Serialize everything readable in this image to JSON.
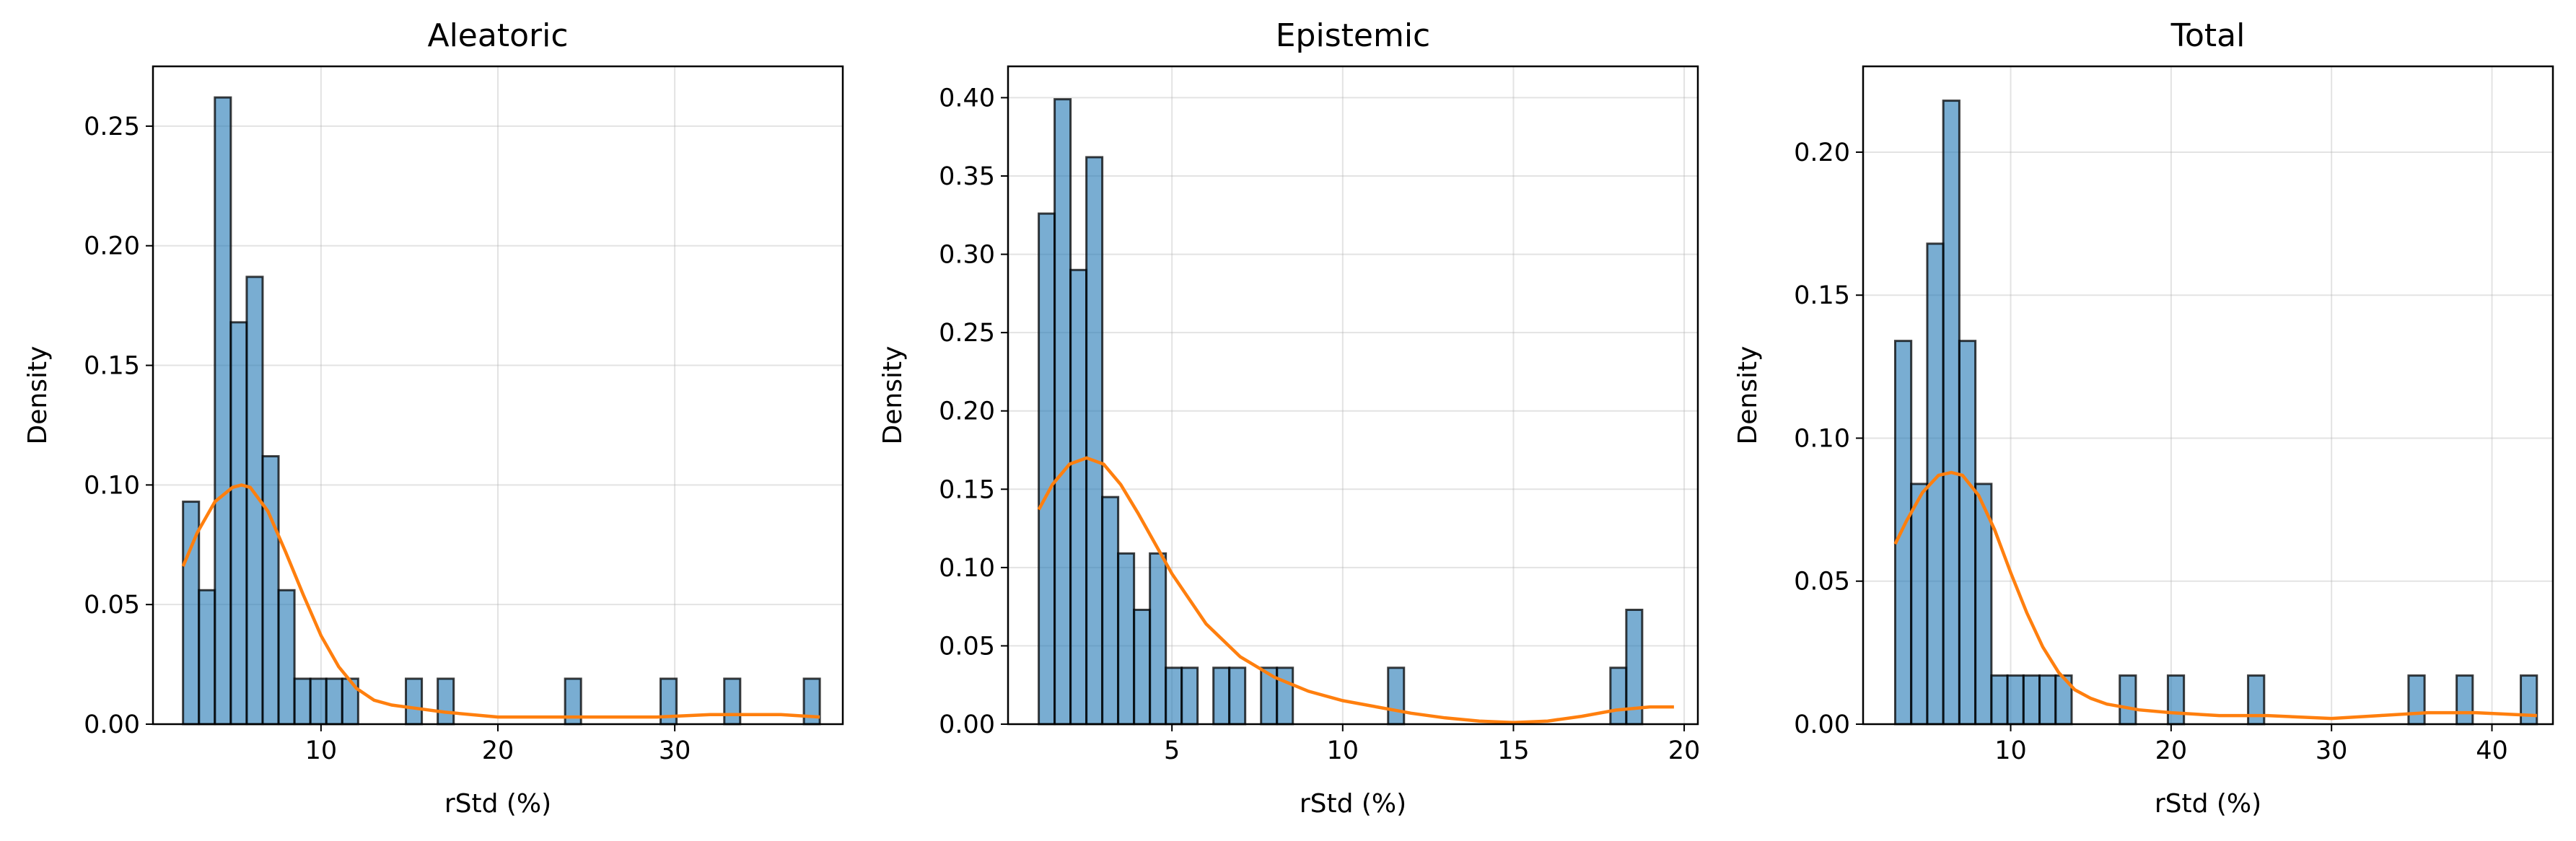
{
  "chart_data": [
    {
      "type": "bar",
      "title": "Aleatoric",
      "xlabel": "rStd (%)",
      "ylabel": "Density",
      "xlim": [
        0.5,
        39.5
      ],
      "ylim": [
        0,
        0.275
      ],
      "xticks": [
        10,
        20,
        30
      ],
      "yticks": [
        0.0,
        0.05,
        0.1,
        0.15,
        0.2,
        0.25
      ],
      "ytick_labels": [
        "0.00",
        "0.05",
        "0.10",
        "0.15",
        "0.20",
        "0.25"
      ],
      "grid": true,
      "bin_edges": [
        2.2,
        3.1,
        4.0,
        4.9,
        5.8,
        6.7,
        7.6,
        8.5,
        9.4,
        10.3,
        11.2,
        12.1,
        13.0,
        13.9,
        14.8,
        15.7,
        16.6,
        17.5,
        18.4,
        19.3,
        20.2,
        21.1,
        22.0,
        22.9,
        23.8,
        24.7,
        25.6,
        26.5,
        27.4,
        28.3,
        29.2,
        30.1,
        31.0,
        31.9,
        32.8,
        33.7,
        34.6,
        35.5,
        36.4,
        37.3,
        38.2
      ],
      "values": [
        0.093,
        0.056,
        0.262,
        0.168,
        0.187,
        0.112,
        0.056,
        0.019,
        0.019,
        0.019,
        0.019,
        0,
        0,
        0,
        0.019,
        0,
        0.019,
        0,
        0,
        0,
        0,
        0,
        0,
        0,
        0.019,
        0,
        0,
        0,
        0,
        0,
        0.019,
        0,
        0,
        0,
        0.019,
        0,
        0,
        0,
        0,
        0.019
      ],
      "kde": {
        "x": [
          2.2,
          3,
          4,
          5,
          5.5,
          6,
          7,
          8,
          9,
          10,
          11,
          12,
          13,
          14,
          15,
          17,
          20,
          23,
          26,
          29,
          32,
          34,
          36,
          38.2
        ],
        "y": [
          0.066,
          0.08,
          0.093,
          0.099,
          0.1,
          0.099,
          0.089,
          0.072,
          0.054,
          0.037,
          0.024,
          0.015,
          0.01,
          0.008,
          0.007,
          0.005,
          0.003,
          0.003,
          0.003,
          0.003,
          0.004,
          0.004,
          0.004,
          0.003
        ]
      }
    },
    {
      "type": "bar",
      "title": "Epistemic",
      "xlabel": "rStd (%)",
      "ylabel": "Density",
      "xlim": [
        0.2,
        20.4
      ],
      "ylim": [
        0,
        0.42
      ],
      "xticks": [
        5,
        10,
        15,
        20
      ],
      "yticks": [
        0.0,
        0.05,
        0.1,
        0.15,
        0.2,
        0.25,
        0.3,
        0.35,
        0.4
      ],
      "ytick_labels": [
        "0.00",
        "0.05",
        "0.10",
        "0.15",
        "0.20",
        "0.25",
        "0.30",
        "0.35",
        "0.40"
      ],
      "grid": true,
      "bin_edges": [
        1.1,
        1.565,
        2.03,
        2.495,
        2.96,
        3.425,
        3.89,
        4.355,
        4.82,
        5.285,
        5.75,
        6.215,
        6.68,
        7.145,
        7.61,
        8.075,
        8.54,
        9.005,
        9.47,
        9.935,
        10.4,
        10.865,
        11.33,
        11.795,
        12.26,
        12.725,
        13.19,
        13.655,
        14.12,
        14.585,
        15.05,
        15.515,
        15.98,
        16.445,
        16.91,
        17.375,
        17.84,
        18.305,
        18.77,
        19.235,
        19.7
      ],
      "values": [
        0.326,
        0.399,
        0.29,
        0.362,
        0.145,
        0.109,
        0.073,
        0.109,
        0.036,
        0.036,
        0,
        0.036,
        0.036,
        0,
        0.036,
        0.036,
        0,
        0,
        0,
        0,
        0,
        0,
        0.036,
        0,
        0,
        0,
        0,
        0,
        0,
        0,
        0,
        0,
        0,
        0,
        0,
        0,
        0.036,
        0.073,
        0,
        0
      ],
      "kde": {
        "x": [
          1.1,
          1.5,
          2,
          2.5,
          3,
          3.5,
          4,
          5,
          6,
          7,
          8,
          9,
          10,
          11,
          12,
          13,
          14,
          15,
          16,
          17,
          18,
          19,
          19.7
        ],
        "y": [
          0.137,
          0.153,
          0.166,
          0.17,
          0.166,
          0.153,
          0.135,
          0.096,
          0.064,
          0.043,
          0.03,
          0.021,
          0.015,
          0.011,
          0.007,
          0.004,
          0.002,
          0.001,
          0.002,
          0.005,
          0.009,
          0.011,
          0.011
        ]
      }
    },
    {
      "type": "bar",
      "title": "Total",
      "xlabel": "rStd (%)",
      "ylabel": "Density",
      "xlim": [
        0.8,
        43.8
      ],
      "ylim": [
        0,
        0.23
      ],
      "xticks": [
        10,
        20,
        30,
        40
      ],
      "yticks": [
        0.0,
        0.05,
        0.1,
        0.15,
        0.2
      ],
      "ytick_labels": [
        "0.00",
        "0.05",
        "0.10",
        "0.15",
        "0.20"
      ],
      "grid": true,
      "bin_edges": [
        2.8,
        3.8,
        4.8,
        5.8,
        6.8,
        7.8,
        8.8,
        9.8,
        10.8,
        11.8,
        12.8,
        13.8,
        14.8,
        15.8,
        16.8,
        17.8,
        18.8,
        19.8,
        20.8,
        21.8,
        22.8,
        23.8,
        24.8,
        25.8,
        26.8,
        27.8,
        28.8,
        29.8,
        30.8,
        31.8,
        32.8,
        33.8,
        34.8,
        35.8,
        36.8,
        37.8,
        38.8,
        39.8,
        40.8,
        41.8,
        42.8
      ],
      "values": [
        0.134,
        0.084,
        0.168,
        0.218,
        0.134,
        0.084,
        0.017,
        0.017,
        0.017,
        0.017,
        0.017,
        0,
        0,
        0,
        0.017,
        0,
        0,
        0.017,
        0,
        0,
        0,
        0,
        0.017,
        0,
        0,
        0,
        0,
        0,
        0,
        0,
        0,
        0,
        0.017,
        0,
        0,
        0.017,
        0,
        0,
        0,
        0.017
      ],
      "kde": {
        "x": [
          2.8,
          3.5,
          4.5,
          5.5,
          6.3,
          7,
          8,
          9,
          10,
          11,
          12,
          13,
          14,
          15,
          16,
          18,
          20,
          23,
          26,
          30,
          33,
          36,
          39,
          42.8
        ],
        "y": [
          0.063,
          0.071,
          0.081,
          0.087,
          0.088,
          0.087,
          0.08,
          0.068,
          0.053,
          0.039,
          0.027,
          0.018,
          0.012,
          0.009,
          0.007,
          0.005,
          0.004,
          0.003,
          0.003,
          0.002,
          0.003,
          0.004,
          0.004,
          0.003
        ]
      }
    }
  ]
}
